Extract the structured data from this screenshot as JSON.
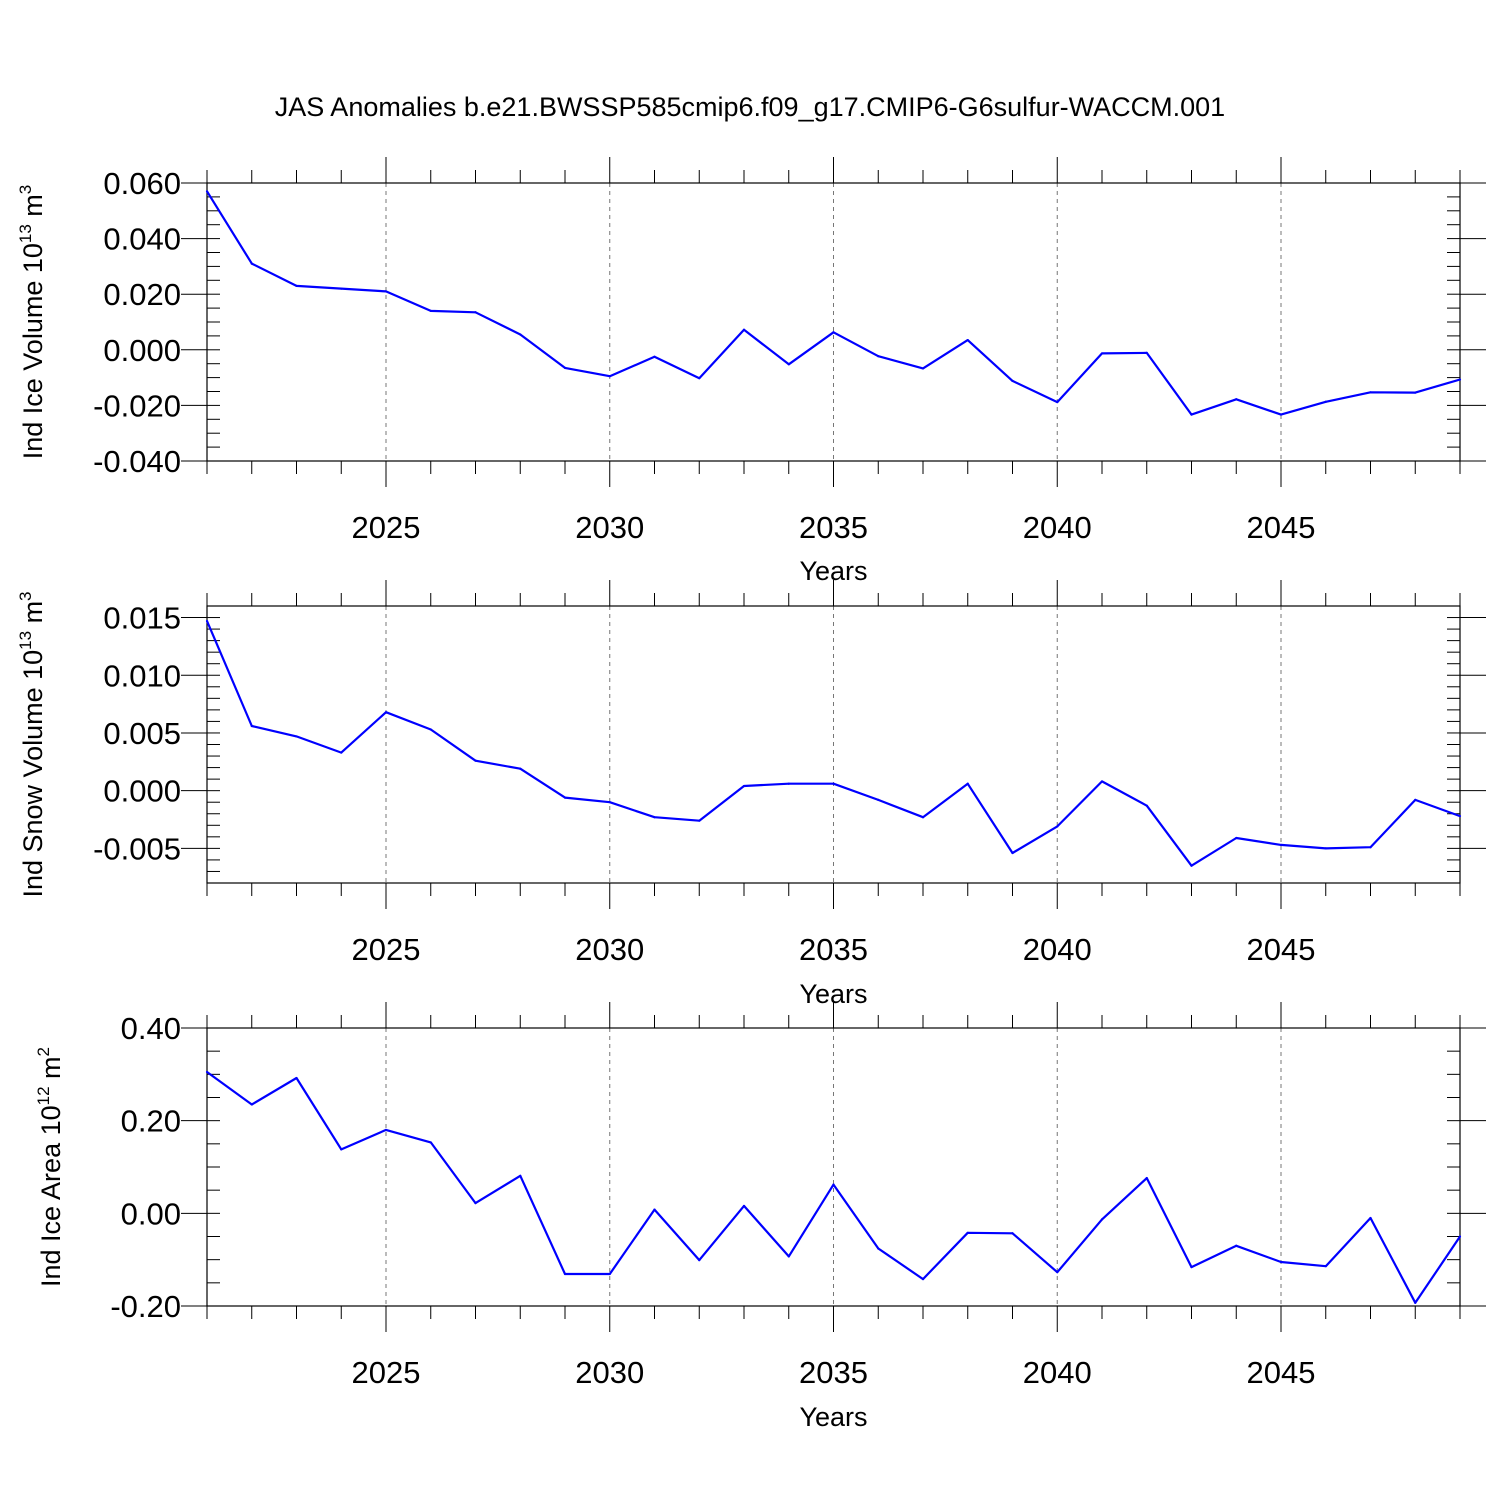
{
  "title": "JAS Anomalies b.e21.BWSSP585cmip6.f09_g17.CMIP6-G6sulfur-WACCM.001",
  "line_color": "#0000ff",
  "chart_data": [
    {
      "type": "line",
      "ylabel": "Ind Ice Volume 10",
      "ylabel_sup": "13",
      "ylabel_unit": " m",
      "ylabel_unit_sup": "3",
      "xlabel": "Years",
      "xlim": [
        2021,
        2049
      ],
      "ylim": [
        -0.04,
        0.06
      ],
      "yticks": [
        0.06,
        0.04,
        0.02,
        0.0,
        -0.02,
        -0.04
      ],
      "ytick_labels": [
        "0.060",
        "0.040",
        "0.020",
        "0.000",
        "-0.020",
        "-0.040"
      ],
      "yminor": 0.005,
      "xticks": [
        2025,
        2030,
        2035,
        2040,
        2045
      ],
      "xtick_labels": [
        "2025",
        "2030",
        "2035",
        "2040",
        "2045"
      ],
      "grid": "dashed vertical at major x ticks",
      "x": [
        2021,
        2022,
        2023,
        2024,
        2025,
        2026,
        2027,
        2028,
        2029,
        2030,
        2031,
        2032,
        2033,
        2034,
        2035,
        2036,
        2037,
        2038,
        2039,
        2040,
        2041,
        2042,
        2043,
        2044,
        2045,
        2046,
        2047,
        2048,
        2049
      ],
      "values": [
        0.057,
        0.031,
        0.023,
        0.022,
        0.021,
        0.014,
        0.0135,
        0.0055,
        -0.0065,
        -0.0095,
        -0.0025,
        -0.0102,
        0.0072,
        -0.0052,
        0.0063,
        -0.0023,
        -0.0067,
        0.0035,
        -0.0112,
        -0.0188,
        -0.0013,
        -0.0011,
        -0.0233,
        -0.0178,
        -0.0233,
        -0.0187,
        -0.0153,
        -0.0154,
        -0.0107
      ]
    },
    {
      "type": "line",
      "ylabel": "Ind Snow Volume 10",
      "ylabel_sup": "13",
      "ylabel_unit": " m",
      "ylabel_unit_sup": "3",
      "xlabel": "Years",
      "xlim": [
        2021,
        2049
      ],
      "ylim": [
        -0.008,
        0.016
      ],
      "yticks": [
        0.015,
        0.01,
        0.005,
        0.0,
        -0.005
      ],
      "ytick_labels": [
        "0.015",
        "0.010",
        "0.005",
        "0.000",
        "-0.005"
      ],
      "yminor": 0.001,
      "xticks": [
        2025,
        2030,
        2035,
        2040,
        2045
      ],
      "xtick_labels": [
        "2025",
        "2030",
        "2035",
        "2040",
        "2045"
      ],
      "grid": "dashed vertical at major x ticks",
      "x": [
        2021,
        2022,
        2023,
        2024,
        2025,
        2026,
        2027,
        2028,
        2029,
        2030,
        2031,
        2032,
        2033,
        2034,
        2035,
        2036,
        2037,
        2038,
        2039,
        2040,
        2041,
        2042,
        2043,
        2044,
        2045,
        2046,
        2047,
        2048,
        2049
      ],
      "values": [
        0.0147,
        0.0056,
        0.0047,
        0.0033,
        0.0068,
        0.0053,
        0.0026,
        0.0019,
        -0.0006,
        -0.001,
        -0.0023,
        -0.0026,
        0.0004,
        0.0006,
        0.0006,
        -0.0008,
        -0.0023,
        0.0006,
        -0.0054,
        -0.0031,
        0.0008,
        -0.0013,
        -0.0065,
        -0.0041,
        -0.0047,
        -0.005,
        -0.0049,
        -0.0008,
        -0.0022
      ]
    },
    {
      "type": "line",
      "ylabel": "Ind Ice Area 10",
      "ylabel_sup": "12",
      "ylabel_unit": " m",
      "ylabel_unit_sup": "2",
      "xlabel": "Years",
      "xlim": [
        2021,
        2049
      ],
      "ylim": [
        -0.2,
        0.4
      ],
      "yticks": [
        0.4,
        0.2,
        0.0,
        -0.2
      ],
      "ytick_labels": [
        "0.40",
        "0.20",
        "0.00",
        "-0.20"
      ],
      "yminor": 0.05,
      "xticks": [
        2025,
        2030,
        2035,
        2040,
        2045
      ],
      "xtick_labels": [
        "2025",
        "2030",
        "2035",
        "2040",
        "2045"
      ],
      "grid": "dashed vertical at major x ticks",
      "x": [
        2021,
        2022,
        2023,
        2024,
        2025,
        2026,
        2027,
        2028,
        2029,
        2030,
        2031,
        2032,
        2033,
        2034,
        2035,
        2036,
        2037,
        2038,
        2039,
        2040,
        2041,
        2042,
        2043,
        2044,
        2045,
        2046,
        2047,
        2048,
        2049
      ],
      "values": [
        0.305,
        0.235,
        0.292,
        0.138,
        0.18,
        0.153,
        0.022,
        0.081,
        -0.131,
        -0.131,
        0.008,
        -0.101,
        0.016,
        -0.093,
        0.062,
        -0.076,
        -0.142,
        -0.042,
        -0.043,
        -0.127,
        -0.013,
        0.076,
        -0.116,
        -0.07,
        -0.105,
        -0.114,
        -0.01,
        -0.193,
        -0.05
      ]
    }
  ]
}
